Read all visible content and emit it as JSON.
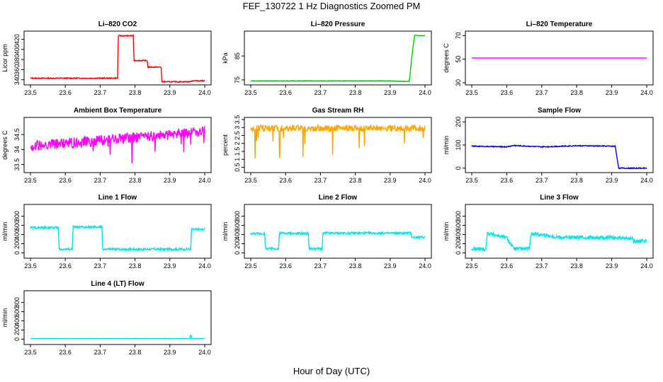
{
  "figure": {
    "title": "FEF_130722  1 Hz Diagnostics Zoomed PM",
    "xlabel": "Hour of Day (UTC)"
  },
  "chart_data": [
    {
      "type": "line",
      "title": "Li–820 CO2",
      "ylabel": "Licor ppm",
      "color": "#ff0000",
      "xlim": [
        23.5,
        24.0
      ],
      "ylim": [
        334,
        432
      ],
      "xticks": [
        "23.5",
        "23.6",
        "23.7",
        "23.8",
        "23.9",
        "24.0"
      ],
      "yticks": [
        340,
        360,
        380,
        400,
        420
      ],
      "series": [
        {
          "x": [
            23.5,
            23.6,
            23.75,
            23.752,
            23.795,
            23.797,
            23.835,
            23.837,
            23.875,
            23.877,
            23.96,
            23.962,
            24.0
          ],
          "y": [
            343,
            343,
            343,
            427,
            427,
            378,
            378,
            365,
            365,
            336,
            336,
            338,
            338
          ],
          "noise": 1
        }
      ]
    },
    {
      "type": "line",
      "title": "Li–820 Pressure",
      "ylabel": "kPa",
      "color": "#00cc00",
      "xlim": [
        23.5,
        24.0
      ],
      "ylim": [
        73.8,
        94.5
      ],
      "xticks": [
        "23.5",
        "23.6",
        "23.7",
        "23.8",
        "23.9",
        "24.0"
      ],
      "yticks": [
        75,
        85
      ],
      "series": [
        {
          "x": [
            23.5,
            23.9,
            23.95,
            23.955,
            23.965,
            23.97,
            24.0
          ],
          "y": [
            74.6,
            74.6,
            74.3,
            74.5,
            88,
            93.5,
            93.5
          ],
          "noise": 0.1
        }
      ]
    },
    {
      "type": "line",
      "title": "Li–820 Temperature",
      "ylabel": "degrees C",
      "color": "#ff00ff",
      "xlim": [
        23.5,
        24.0
      ],
      "ylim": [
        30,
        72
      ],
      "xticks": [
        "23.5",
        "23.6",
        "23.7",
        "23.8",
        "23.9",
        "24.0"
      ],
      "yticks": [
        30,
        50,
        70
      ],
      "series": [
        {
          "x": [
            23.5,
            24.0
          ],
          "y": [
            51,
            51
          ],
          "noise": 0
        }
      ]
    },
    {
      "type": "line",
      "title": "Ambient Box Temperature",
      "ylabel": "degrees C",
      "color": "#ff00ff",
      "xlim": [
        23.5,
        24.0
      ],
      "ylim": [
        33.3,
        35.0
      ],
      "xticks": [
        "23.5",
        "23.6",
        "23.7",
        "23.8",
        "23.9",
        "24.0"
      ],
      "yticks": [
        33.5,
        34.0,
        34.5
      ],
      "series": [
        {
          "x": [
            23.5,
            23.6,
            23.7,
            23.8,
            23.9,
            24.0
          ],
          "y": [
            34.1,
            34.2,
            34.3,
            34.4,
            34.5,
            34.6
          ],
          "noise": 0.18,
          "spikes": -0.7
        }
      ]
    },
    {
      "type": "line",
      "title": "Gas Stream RH",
      "ylabel": "percent",
      "color": "#ffa500",
      "xlim": [
        23.5,
        24.0
      ],
      "ylim": [
        0.3,
        3.5
      ],
      "xticks": [
        "23.5",
        "23.6",
        "23.7",
        "23.8",
        "23.9",
        "24.0"
      ],
      "yticks": [
        0.5,
        1.0,
        1.5,
        2.0,
        2.5,
        3.0,
        3.5
      ],
      "series": [
        {
          "x": [
            23.5,
            24.0
          ],
          "y": [
            2.95,
            2.95
          ],
          "noise": 0.2,
          "spikes": -2.4
        }
      ]
    },
    {
      "type": "line",
      "title": "Sample Flow",
      "ylabel": "ml/min",
      "color": "#0000cc",
      "xlim": [
        23.5,
        24.0
      ],
      "ylim": [
        -10,
        210
      ],
      "xticks": [
        "23.5",
        "23.6",
        "23.7",
        "23.8",
        "23.9",
        "24.0"
      ],
      "yticks": [
        0,
        100,
        200
      ],
      "series": [
        {
          "x": [
            23.5,
            23.6,
            23.62,
            23.7,
            23.8,
            23.9,
            23.91,
            23.92,
            24.0
          ],
          "y": [
            95,
            92,
            98,
            92,
            97,
            95,
            95,
            0,
            0
          ],
          "noise": 2
        }
      ]
    },
    {
      "type": "line",
      "title": "Line 1 Flow",
      "ylabel": "ml/min",
      "color": "#00e5e5",
      "xlim": [
        23.5,
        24.0
      ],
      "ylim": [
        -70,
        1010
      ],
      "xticks": [
        "23.5",
        "23.6",
        "23.7",
        "23.8",
        "23.9",
        "24.0"
      ],
      "yticks": [
        0,
        200,
        400,
        600,
        800
      ],
      "series": [
        {
          "x": [
            23.5,
            23.502,
            23.58,
            23.582,
            23.62,
            23.622,
            23.705,
            23.707,
            23.96,
            23.962,
            24.0
          ],
          "y": [
            550,
            550,
            550,
            80,
            80,
            560,
            560,
            80,
            80,
            510,
            510
          ],
          "noise": 25
        }
      ]
    },
    {
      "type": "line",
      "title": "Line 2 Flow",
      "ylabel": "ml/min",
      "color": "#00e5e5",
      "xlim": [
        23.5,
        24.0
      ],
      "ylim": [
        -70,
        1010
      ],
      "xticks": [
        "23.5",
        "23.6",
        "23.7",
        "23.8",
        "23.9",
        "24.0"
      ],
      "yticks": [
        0,
        200,
        400,
        600,
        800
      ],
      "series": [
        {
          "x": [
            23.5,
            23.54,
            23.542,
            23.58,
            23.582,
            23.665,
            23.667,
            23.705,
            23.707,
            23.8,
            23.96,
            23.962,
            24.0
          ],
          "y": [
            420,
            420,
            90,
            90,
            430,
            420,
            90,
            90,
            430,
            430,
            430,
            340,
            340
          ],
          "noise": 25
        }
      ]
    },
    {
      "type": "line",
      "title": "Line 3 Flow",
      "ylabel": "ml/min",
      "color": "#00e5e5",
      "xlim": [
        23.5,
        24.0
      ],
      "ylim": [
        -70,
        1010
      ],
      "xticks": [
        "23.5",
        "23.6",
        "23.7",
        "23.8",
        "23.9",
        "24.0"
      ],
      "yticks": [
        0,
        200,
        400,
        600,
        800
      ],
      "series": [
        {
          "x": [
            23.5,
            23.54,
            23.545,
            23.6,
            23.62,
            23.625,
            23.665,
            23.67,
            23.75,
            23.9,
            23.96,
            23.962,
            24.0
          ],
          "y": [
            80,
            80,
            430,
            330,
            90,
            90,
            90,
            430,
            340,
            330,
            310,
            250,
            260
          ],
          "noise": 40
        }
      ]
    },
    {
      "type": "line",
      "title": "Line 4 (LT) Flow",
      "ylabel": "ml/min",
      "color": "#00e5e5",
      "xlim": [
        23.5,
        24.0
      ],
      "ylim": [
        -70,
        1010
      ],
      "xticks": [
        "23.5",
        "23.6",
        "23.7",
        "23.8",
        "23.9",
        "24.0"
      ],
      "yticks": [
        0,
        200,
        400,
        600,
        800
      ],
      "series": [
        {
          "x": [
            23.5,
            23.958,
            23.959,
            23.961,
            23.962,
            24.0
          ],
          "y": [
            15,
            15,
            90,
            90,
            15,
            15
          ],
          "noise": 3
        }
      ]
    }
  ]
}
